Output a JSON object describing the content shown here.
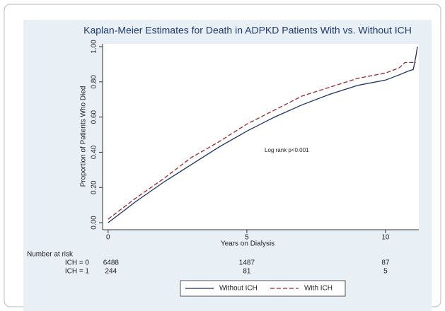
{
  "chart_data": {
    "type": "line",
    "title": "Kaplan-Meier Estimates for Death in ADPKD Patients With vs. Without ICH",
    "x_label": "Years on Dialysis",
    "y_label": "Proportion of Patients Who Died",
    "annotation": "Log rank p<0.001",
    "xlim": [
      -0.2,
      11.2
    ],
    "ylim": [
      -0.04,
      1.016
    ],
    "xticks": [
      0,
      5,
      10
    ],
    "yticks": [
      {
        "value": 0,
        "label": "0.00"
      },
      {
        "value": 0.2,
        "label": "0.20"
      },
      {
        "value": 0.4,
        "label": "0.40"
      },
      {
        "value": 0.6,
        "label": "0.60"
      },
      {
        "value": 0.8,
        "label": "0.80"
      },
      {
        "value": 1,
        "label": "1.00"
      }
    ],
    "series": [
      {
        "name": "Without ICH",
        "color": "#1c2f6b",
        "dash": false,
        "x": [
          0,
          0.5,
          1,
          2,
          3,
          4,
          5,
          6,
          7,
          8,
          9,
          10,
          10.5,
          10.8,
          11,
          11.1,
          11.15
        ],
        "values": [
          0,
          0.06,
          0.12,
          0.23,
          0.33,
          0.43,
          0.52,
          0.6,
          0.67,
          0.73,
          0.78,
          0.81,
          0.84,
          0.86,
          0.87,
          0.95,
          1
        ]
      },
      {
        "name": "With ICH",
        "color": "#a3222c",
        "dash": true,
        "x": [
          0,
          0.5,
          1,
          2,
          3,
          4,
          5,
          6,
          7,
          8,
          9,
          10,
          10.5,
          10.7,
          11.1
        ],
        "values": [
          0.02,
          0.08,
          0.14,
          0.25,
          0.37,
          0.46,
          0.56,
          0.64,
          0.72,
          0.77,
          0.82,
          0.85,
          0.88,
          0.91,
          0.91
        ]
      }
    ],
    "risk_table": {
      "title": "Number at risk",
      "rows": [
        {
          "label": "ICH = 0",
          "counts": [
            "6488",
            "1487",
            "87"
          ]
        },
        {
          "label": "ICH = 1",
          "counts": [
            "244",
            "81",
            "5"
          ]
        }
      ]
    }
  }
}
